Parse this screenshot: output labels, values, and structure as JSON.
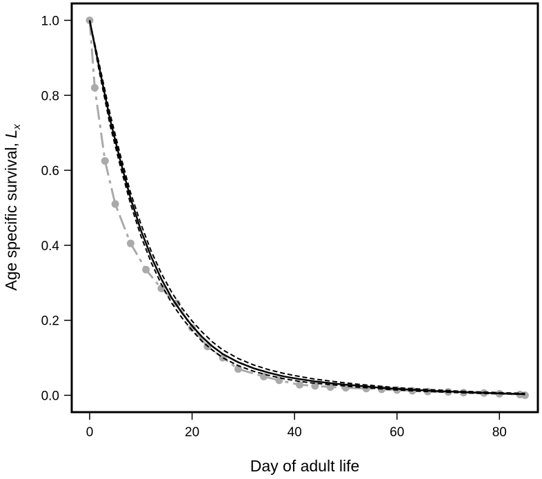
{
  "chart_data": {
    "type": "line",
    "xlabel": "Day of adult life",
    "ylabel_prefix": "Age specific survival, ",
    "ylabel_symbol": "L",
    "ylabel_subscript": "x",
    "xlim": [
      -3.5,
      87.5
    ],
    "ylim": [
      -0.045,
      1.045
    ],
    "x_ticks": [
      0,
      20,
      40,
      60,
      80
    ],
    "x_tick_labels": [
      "0",
      "20",
      "40",
      "60",
      "80"
    ],
    "y_ticks": [
      0.0,
      0.2,
      0.4,
      0.6,
      0.8,
      1.0
    ],
    "y_tick_labels": [
      "0.0",
      "0.2",
      "0.4",
      "0.6",
      "0.8",
      "1.0"
    ],
    "grid": false,
    "colors": {
      "observed": "#aaaaaa",
      "model": "#000000"
    },
    "series": [
      {
        "style": "gray dashed line with points",
        "x": [
          0,
          1,
          3,
          5,
          8,
          11,
          14,
          17,
          20,
          23,
          26,
          29,
          34,
          37,
          41,
          44,
          47,
          50,
          54,
          57,
          60,
          63,
          66,
          70,
          73,
          77,
          80,
          84,
          85
        ],
        "y": [
          1.0,
          0.82,
          0.625,
          0.51,
          0.405,
          0.335,
          0.285,
          0.245,
          0.18,
          0.13,
          0.1,
          0.07,
          0.05,
          0.04,
          0.028,
          0.025,
          0.022,
          0.02,
          0.018,
          0.016,
          0.014,
          0.012,
          0.01,
          0.009,
          0.007,
          0.006,
          0.004,
          0.002,
          0.0
        ]
      },
      {
        "style": "solid black line",
        "x": [
          0,
          2,
          4,
          6,
          8,
          10,
          12,
          14,
          16,
          18,
          20,
          22,
          24,
          26,
          29,
          32,
          35,
          38,
          41,
          44,
          48,
          52,
          56,
          60,
          64,
          68,
          72,
          76,
          80,
          85
        ],
        "y": [
          1.0,
          0.865,
          0.735,
          0.625,
          0.525,
          0.44,
          0.37,
          0.31,
          0.26,
          0.22,
          0.185,
          0.155,
          0.13,
          0.11,
          0.088,
          0.072,
          0.06,
          0.05,
          0.043,
          0.037,
          0.031,
          0.026,
          0.021,
          0.017,
          0.014,
          0.011,
          0.009,
          0.007,
          0.005,
          0.003
        ]
      },
      {
        "style": "dashed black upper bound",
        "x": [
          0,
          2,
          4,
          6,
          8,
          10,
          12,
          14,
          16,
          18,
          20,
          22,
          24,
          26,
          29,
          32,
          35,
          38,
          41,
          44,
          48,
          52,
          56,
          60,
          64,
          68,
          72,
          76,
          80,
          85
        ],
        "y": [
          1.0,
          0.875,
          0.75,
          0.64,
          0.54,
          0.457,
          0.385,
          0.325,
          0.275,
          0.233,
          0.198,
          0.168,
          0.142,
          0.121,
          0.098,
          0.081,
          0.068,
          0.058,
          0.05,
          0.043,
          0.036,
          0.03,
          0.025,
          0.02,
          0.017,
          0.014,
          0.011,
          0.009,
          0.007,
          0.005
        ]
      },
      {
        "style": "dashed black lower bound",
        "x": [
          0,
          2,
          4,
          6,
          8,
          10,
          12,
          14,
          16,
          18,
          20,
          22,
          24,
          26,
          29,
          32,
          35,
          38,
          41,
          44,
          48,
          52,
          56,
          60,
          64,
          68,
          72,
          76,
          80,
          85
        ],
        "y": [
          1.0,
          0.855,
          0.72,
          0.61,
          0.51,
          0.425,
          0.355,
          0.296,
          0.246,
          0.207,
          0.173,
          0.143,
          0.12,
          0.1,
          0.079,
          0.064,
          0.053,
          0.044,
          0.037,
          0.032,
          0.027,
          0.022,
          0.018,
          0.014,
          0.011,
          0.009,
          0.007,
          0.005,
          0.004,
          0.002
        ]
      }
    ]
  }
}
